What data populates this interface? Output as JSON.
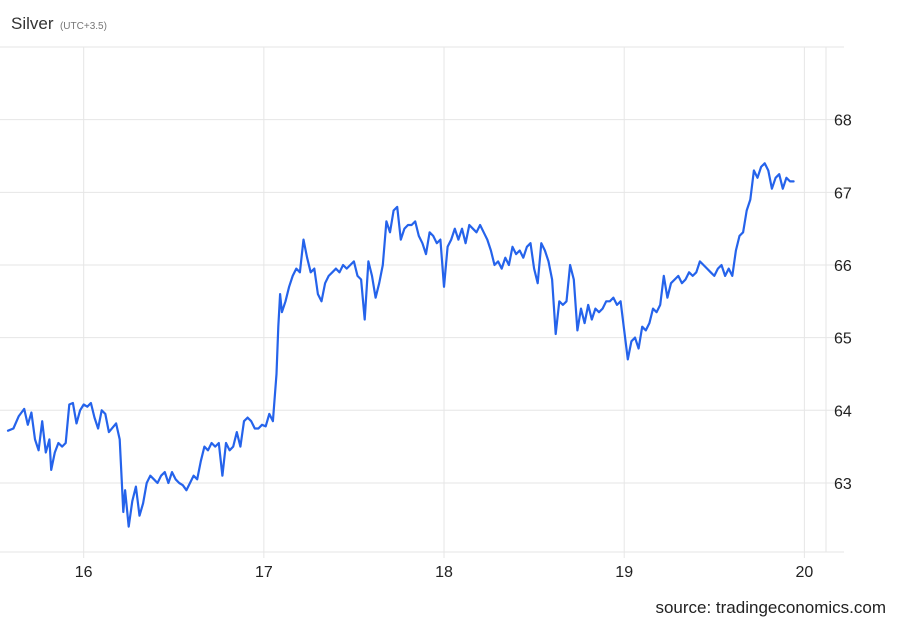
{
  "chart_data": {
    "type": "line",
    "title": "Silver",
    "subtitle": "(UTC+3.5)",
    "source": "source: tradingeconomics.com",
    "xlabel": "",
    "ylabel": "",
    "xlim": [
      15.58,
      20.12
    ],
    "ylim": [
      62.05,
      69.0
    ],
    "x_ticks": [
      16,
      17,
      18,
      19,
      20
    ],
    "x_tick_labels": [
      "16",
      "17",
      "18",
      "19",
      "20"
    ],
    "y_ticks": [
      63,
      64,
      65,
      66,
      67,
      68
    ],
    "y_tick_labels": [
      "63",
      "64",
      "65",
      "66",
      "67",
      "68"
    ],
    "grid": true,
    "legend": "none",
    "colors": {
      "line": "#2563eb",
      "grid": "#e6e6e6"
    },
    "series": [
      {
        "color": "#2563eb",
        "points": [
          [
            15.58,
            63.72
          ],
          [
            15.61,
            63.75
          ],
          [
            15.64,
            63.92
          ],
          [
            15.67,
            64.02
          ],
          [
            15.69,
            63.8
          ],
          [
            15.71,
            63.97
          ],
          [
            15.73,
            63.6
          ],
          [
            15.75,
            63.45
          ],
          [
            15.77,
            63.85
          ],
          [
            15.79,
            63.42
          ],
          [
            15.81,
            63.6
          ],
          [
            15.82,
            63.18
          ],
          [
            15.84,
            63.42
          ],
          [
            15.86,
            63.55
          ],
          [
            15.88,
            63.5
          ],
          [
            15.9,
            63.55
          ],
          [
            15.92,
            64.08
          ],
          [
            15.94,
            64.1
          ],
          [
            15.96,
            63.82
          ],
          [
            15.98,
            64.0
          ],
          [
            16.0,
            64.08
          ],
          [
            16.02,
            64.05
          ],
          [
            16.04,
            64.1
          ],
          [
            16.06,
            63.9
          ],
          [
            16.08,
            63.75
          ],
          [
            16.1,
            64.0
          ],
          [
            16.12,
            63.95
          ],
          [
            16.14,
            63.7
          ],
          [
            16.18,
            63.82
          ],
          [
            16.2,
            63.6
          ],
          [
            16.22,
            62.6
          ],
          [
            16.23,
            62.9
          ],
          [
            16.25,
            62.4
          ],
          [
            16.27,
            62.75
          ],
          [
            16.29,
            62.95
          ],
          [
            16.31,
            62.55
          ],
          [
            16.33,
            62.72
          ],
          [
            16.35,
            63.0
          ],
          [
            16.37,
            63.1
          ],
          [
            16.39,
            63.05
          ],
          [
            16.41,
            63.0
          ],
          [
            16.43,
            63.1
          ],
          [
            16.45,
            63.15
          ],
          [
            16.47,
            63.0
          ],
          [
            16.49,
            63.15
          ],
          [
            16.51,
            63.05
          ],
          [
            16.53,
            63.0
          ],
          [
            16.55,
            62.97
          ],
          [
            16.57,
            62.9
          ],
          [
            16.59,
            63.0
          ],
          [
            16.61,
            63.1
          ],
          [
            16.63,
            63.05
          ],
          [
            16.65,
            63.3
          ],
          [
            16.67,
            63.5
          ],
          [
            16.69,
            63.45
          ],
          [
            16.71,
            63.55
          ],
          [
            16.73,
            63.5
          ],
          [
            16.75,
            63.55
          ],
          [
            16.77,
            63.1
          ],
          [
            16.79,
            63.55
          ],
          [
            16.81,
            63.45
          ],
          [
            16.83,
            63.5
          ],
          [
            16.85,
            63.7
          ],
          [
            16.87,
            63.5
          ],
          [
            16.89,
            63.85
          ],
          [
            16.91,
            63.9
          ],
          [
            16.93,
            63.85
          ],
          [
            16.95,
            63.75
          ],
          [
            16.97,
            63.75
          ],
          [
            16.99,
            63.8
          ],
          [
            17.01,
            63.78
          ],
          [
            17.03,
            63.95
          ],
          [
            17.05,
            63.85
          ],
          [
            17.07,
            64.5
          ],
          [
            17.08,
            65.15
          ],
          [
            17.09,
            65.6
          ],
          [
            17.1,
            65.35
          ],
          [
            17.12,
            65.5
          ],
          [
            17.14,
            65.7
          ],
          [
            17.16,
            65.85
          ],
          [
            17.18,
            65.95
          ],
          [
            17.2,
            65.9
          ],
          [
            17.22,
            66.35
          ],
          [
            17.24,
            66.1
          ],
          [
            17.26,
            65.9
          ],
          [
            17.28,
            65.95
          ],
          [
            17.3,
            65.6
          ],
          [
            17.32,
            65.5
          ],
          [
            17.34,
            65.75
          ],
          [
            17.36,
            65.85
          ],
          [
            17.38,
            65.9
          ],
          [
            17.4,
            65.95
          ],
          [
            17.42,
            65.9
          ],
          [
            17.44,
            66.0
          ],
          [
            17.46,
            65.95
          ],
          [
            17.48,
            66.0
          ],
          [
            17.5,
            66.05
          ],
          [
            17.52,
            65.85
          ],
          [
            17.54,
            65.8
          ],
          [
            17.56,
            65.25
          ],
          [
            17.58,
            66.05
          ],
          [
            17.6,
            65.85
          ],
          [
            17.62,
            65.55
          ],
          [
            17.64,
            65.75
          ],
          [
            17.66,
            66.0
          ],
          [
            17.68,
            66.6
          ],
          [
            17.7,
            66.45
          ],
          [
            17.72,
            66.75
          ],
          [
            17.74,
            66.8
          ],
          [
            17.76,
            66.35
          ],
          [
            17.78,
            66.5
          ],
          [
            17.8,
            66.55
          ],
          [
            17.82,
            66.55
          ],
          [
            17.84,
            66.6
          ],
          [
            17.86,
            66.4
          ],
          [
            17.88,
            66.3
          ],
          [
            17.9,
            66.15
          ],
          [
            17.92,
            66.45
          ],
          [
            17.94,
            66.4
          ],
          [
            17.96,
            66.3
          ],
          [
            17.98,
            66.35
          ],
          [
            18.0,
            65.7
          ],
          [
            18.02,
            66.25
          ],
          [
            18.04,
            66.35
          ],
          [
            18.06,
            66.5
          ],
          [
            18.08,
            66.35
          ],
          [
            18.1,
            66.5
          ],
          [
            18.12,
            66.3
          ],
          [
            18.14,
            66.55
          ],
          [
            18.16,
            66.5
          ],
          [
            18.18,
            66.45
          ],
          [
            18.2,
            66.55
          ],
          [
            18.22,
            66.45
          ],
          [
            18.24,
            66.35
          ],
          [
            18.26,
            66.2
          ],
          [
            18.28,
            66.0
          ],
          [
            18.3,
            66.05
          ],
          [
            18.32,
            65.95
          ],
          [
            18.34,
            66.1
          ],
          [
            18.36,
            66.0
          ],
          [
            18.38,
            66.25
          ],
          [
            18.4,
            66.15
          ],
          [
            18.42,
            66.2
          ],
          [
            18.44,
            66.1
          ],
          [
            18.46,
            66.25
          ],
          [
            18.48,
            66.3
          ],
          [
            18.5,
            65.95
          ],
          [
            18.52,
            65.75
          ],
          [
            18.54,
            66.3
          ],
          [
            18.56,
            66.2
          ],
          [
            18.58,
            66.05
          ],
          [
            18.6,
            65.8
          ],
          [
            18.62,
            65.05
          ],
          [
            18.64,
            65.5
          ],
          [
            18.66,
            65.45
          ],
          [
            18.68,
            65.5
          ],
          [
            18.7,
            66.0
          ],
          [
            18.72,
            65.8
          ],
          [
            18.74,
            65.1
          ],
          [
            18.76,
            65.4
          ],
          [
            18.78,
            65.2
          ],
          [
            18.8,
            65.45
          ],
          [
            18.82,
            65.25
          ],
          [
            18.84,
            65.4
          ],
          [
            18.86,
            65.35
          ],
          [
            18.88,
            65.4
          ],
          [
            18.9,
            65.5
          ],
          [
            18.92,
            65.5
          ],
          [
            18.94,
            65.55
          ],
          [
            18.96,
            65.45
          ],
          [
            18.98,
            65.5
          ],
          [
            19.0,
            65.1
          ],
          [
            19.02,
            64.7
          ],
          [
            19.04,
            64.95
          ],
          [
            19.06,
            65.0
          ],
          [
            19.08,
            64.85
          ],
          [
            19.1,
            65.15
          ],
          [
            19.12,
            65.1
          ],
          [
            19.14,
            65.2
          ],
          [
            19.16,
            65.4
          ],
          [
            19.18,
            65.35
          ],
          [
            19.2,
            65.45
          ],
          [
            19.22,
            65.85
          ],
          [
            19.24,
            65.55
          ],
          [
            19.26,
            65.75
          ],
          [
            19.28,
            65.8
          ],
          [
            19.3,
            65.85
          ],
          [
            19.32,
            65.75
          ],
          [
            19.34,
            65.8
          ],
          [
            19.36,
            65.9
          ],
          [
            19.38,
            65.85
          ],
          [
            19.4,
            65.9
          ],
          [
            19.42,
            66.05
          ],
          [
            19.44,
            66.0
          ],
          [
            19.46,
            65.95
          ],
          [
            19.48,
            65.9
          ],
          [
            19.5,
            65.85
          ],
          [
            19.52,
            65.95
          ],
          [
            19.54,
            66.0
          ],
          [
            19.56,
            65.85
          ],
          [
            19.58,
            65.95
          ],
          [
            19.6,
            65.85
          ],
          [
            19.62,
            66.2
          ],
          [
            19.64,
            66.4
          ],
          [
            19.66,
            66.45
          ],
          [
            19.68,
            66.75
          ],
          [
            19.7,
            66.9
          ],
          [
            19.72,
            67.3
          ],
          [
            19.74,
            67.2
          ],
          [
            19.76,
            67.35
          ],
          [
            19.78,
            67.4
          ],
          [
            19.8,
            67.3
          ],
          [
            19.82,
            67.05
          ],
          [
            19.84,
            67.2
          ],
          [
            19.86,
            67.25
          ],
          [
            19.88,
            67.05
          ],
          [
            19.9,
            67.2
          ],
          [
            19.92,
            67.15
          ],
          [
            19.94,
            67.15
          ]
        ]
      }
    ]
  }
}
